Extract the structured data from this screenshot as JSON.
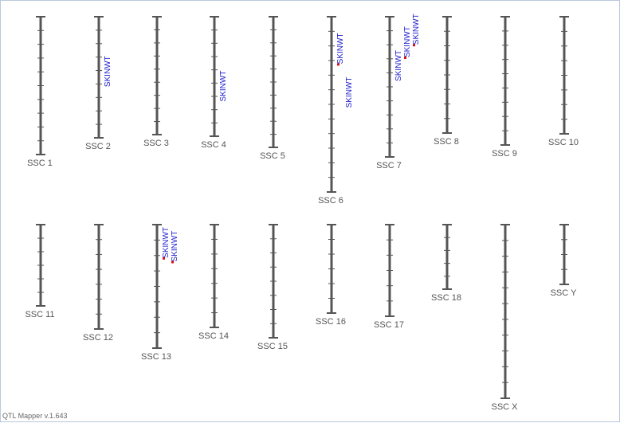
{
  "app": {
    "version_label": "QTL Mapper v.1.643"
  },
  "colors": {
    "chromosome": "#555555",
    "qtl_label": "#1a1acc",
    "qtl_marker": "#e01010",
    "frame_border": "#b8c8dc"
  },
  "chromosomes": [
    {
      "name": "SSC 1",
      "row": 0,
      "col": 0,
      "ticks": 9
    },
    {
      "name": "SSC 2",
      "row": 0,
      "col": 1,
      "ticks": 8,
      "qtls": [
        {
          "label": "SKINWT",
          "position": 0.58
        }
      ]
    },
    {
      "name": "SSC 3",
      "row": 0,
      "col": 2,
      "ticks": 8
    },
    {
      "name": "SSC 4",
      "row": 0,
      "col": 3,
      "ticks": 8,
      "qtls": [
        {
          "label": "SKINWT",
          "position": 0.71
        }
      ]
    },
    {
      "name": "SSC 5",
      "row": 0,
      "col": 4,
      "ticks": 9
    },
    {
      "name": "SSC 6",
      "row": 0,
      "col": 5,
      "ticks": 11,
      "qtls": [
        {
          "label": "SKINWT",
          "position": 0.27,
          "marker": true
        },
        {
          "label": "SKINWT",
          "position": 0.52
        }
      ]
    },
    {
      "name": "SSC 7",
      "row": 0,
      "col": 6,
      "ticks": 9,
      "qtls": [
        {
          "label": "SKINWT",
          "position": 0.46
        },
        {
          "label": "SKINWT",
          "position": 0.29,
          "marker": true
        },
        {
          "label": "SKINWT",
          "position": 0.2,
          "marker": true
        }
      ]
    },
    {
      "name": "SSC 8",
      "row": 0,
      "col": 7,
      "ticks": 7
    },
    {
      "name": "SSC 9",
      "row": 0,
      "col": 8,
      "ticks": 8
    },
    {
      "name": "SSC 10",
      "row": 0,
      "col": 9,
      "ticks": 7
    },
    {
      "name": "SSC 11",
      "row": 1,
      "col": 0,
      "ticks": 5
    },
    {
      "name": "SSC 12",
      "row": 1,
      "col": 1,
      "ticks": 6
    },
    {
      "name": "SSC 13",
      "row": 1,
      "col": 2,
      "ticks": 7,
      "qtls": [
        {
          "label": "SKINWT",
          "position": 0.27,
          "marker": true
        },
        {
          "label": "SKINWT",
          "position": 0.3,
          "marker": true
        }
      ]
    },
    {
      "name": "SSC 14",
      "row": 1,
      "col": 3,
      "ticks": 6
    },
    {
      "name": "SSC 15",
      "row": 1,
      "col": 4,
      "ticks": 7
    },
    {
      "name": "SSC 16",
      "row": 1,
      "col": 5,
      "ticks": 5
    },
    {
      "name": "SSC 17",
      "row": 1,
      "col": 6,
      "ticks": 5
    },
    {
      "name": "SSC 18",
      "row": 1,
      "col": 7,
      "ticks": 4
    },
    {
      "name": "SSC X",
      "row": 1,
      "col": 8,
      "ticks": 10
    },
    {
      "name": "SSC Y",
      "row": 1,
      "col": 9,
      "ticks": 3
    }
  ]
}
